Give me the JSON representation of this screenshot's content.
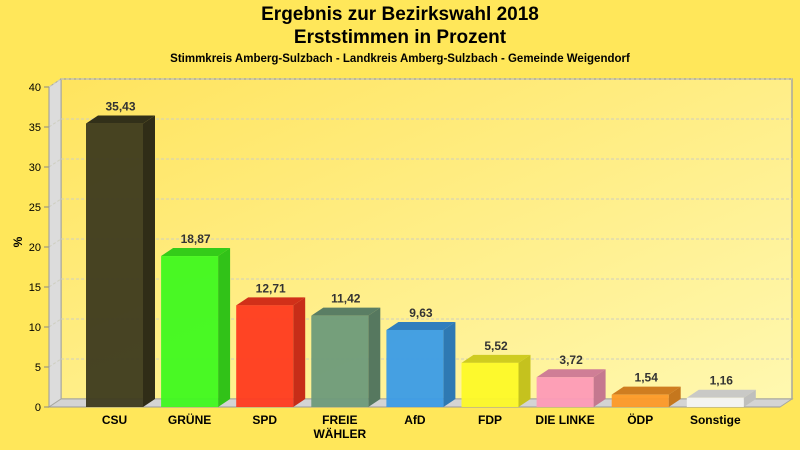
{
  "chart_data": {
    "type": "bar",
    "title": "Ergebnis zur Bezirkswahl 2018",
    "subtitle": "Erststimmen in Prozent",
    "caption": "Stimmkreis Amberg-Sulzbach - Landkreis Amberg-Sulzbach - Gemeinde Weigendorf",
    "xlabel": "",
    "ylabel": "%",
    "ylim": [
      0,
      40
    ],
    "yticks": [
      0,
      5,
      10,
      15,
      20,
      25,
      30,
      35,
      40
    ],
    "grid": true,
    "legend": "none",
    "categories": [
      [
        "CSU"
      ],
      [
        "GRÜNE"
      ],
      [
        "SPD"
      ],
      [
        "FREIE",
        "WÄHLER"
      ],
      [
        "AfD"
      ],
      [
        "FDP"
      ],
      [
        "DIE LINKE"
      ],
      [
        "ÖDP"
      ],
      [
        "Sonstige"
      ]
    ],
    "values": [
      35.43,
      18.87,
      12.71,
      11.42,
      9.63,
      5.52,
      3.72,
      1.54,
      1.16
    ],
    "value_labels": [
      "35,43",
      "18,87",
      "12,71",
      "11,42",
      "9,63",
      "5,52",
      "3,72",
      "1,54",
      "1,16"
    ],
    "colors": [
      "#3d3a1e",
      "#3ff91f",
      "#ff3a1f",
      "#6e9a7a",
      "#3b9be6",
      "#fdf927",
      "#fd9ab7",
      "#fd9927",
      "#f5f5f2"
    ]
  }
}
